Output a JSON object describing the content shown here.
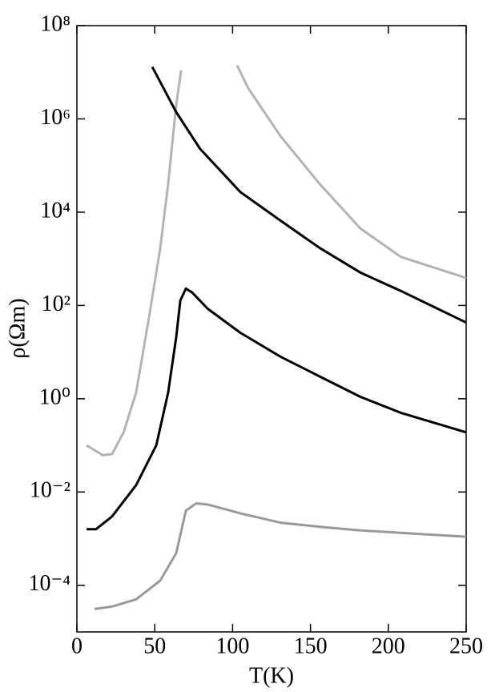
{
  "chart_data": {
    "type": "line",
    "log_y": true,
    "x_label": "T(K)",
    "y_label": "ρ(Ωm)",
    "xlim": [
      0,
      250
    ],
    "xticks": [
      0,
      50,
      100,
      150,
      200,
      250
    ],
    "ylim": [
      1e-05,
      100000000
    ],
    "yticks": [
      {
        "value": 0.0001,
        "label": "10⁻⁴"
      },
      {
        "value": 0.01,
        "label": "10⁻²"
      },
      {
        "value": 1,
        "label": "10⁰"
      },
      {
        "value": 100,
        "label": "10²"
      },
      {
        "value": 10000,
        "label": "10⁴"
      },
      {
        "value": 1000000,
        "label": "10⁶"
      },
      {
        "value": 100000000,
        "label": "10⁸"
      }
    ],
    "series": [
      {
        "color": "#b3b3b3",
        "x": [
          6.2,
          16.5,
          22.6,
          30,
          38,
          46,
          53.5,
          58.6,
          61.2,
          63.8,
          66.9
        ],
        "values": [
          0.1,
          0.062,
          0.065,
          0.19,
          1.35,
          48,
          1660,
          40000,
          290000,
          2000000,
          11000000
        ]
      },
      {
        "color": "#b3b3b3",
        "x": [
          102.9,
          110,
          130.7,
          156,
          182,
          208,
          250
        ],
        "values": [
          14000000,
          4600000,
          430000,
          40000,
          4500,
          1100,
          390
        ]
      },
      {
        "color": "#000000",
        "x": [
          48.4,
          63.8,
          79,
          105,
          130.7,
          156,
          182,
          208,
          250
        ],
        "values": [
          13000000,
          1400000,
          230000,
          27000,
          6600,
          1700,
          510,
          205,
          43
        ]
      },
      {
        "color": "#000000",
        "x": [
          6.2,
          12.3,
          22.6,
          38,
          51,
          58.6,
          63.8,
          66.4,
          70,
          74,
          84,
          105,
          130.7,
          156,
          182,
          208,
          250
        ],
        "values": [
          0.0016,
          0.0016,
          0.003,
          0.014,
          0.1,
          1.35,
          21,
          127,
          230,
          190,
          85,
          26,
          8,
          3,
          1.1,
          0.5,
          0.19
        ]
      },
      {
        "color": "#999999",
        "x": [
          11.3,
          22.6,
          38,
          53.5,
          63.8,
          70,
          76.6,
          84,
          105,
          130.7,
          156,
          182,
          250
        ],
        "values": [
          3.1e-05,
          3.5e-05,
          5e-05,
          0.000126,
          0.00049,
          0.004,
          0.0057,
          0.0054,
          0.0035,
          0.0022,
          0.0018,
          0.0015,
          0.0011
        ]
      }
    ]
  }
}
